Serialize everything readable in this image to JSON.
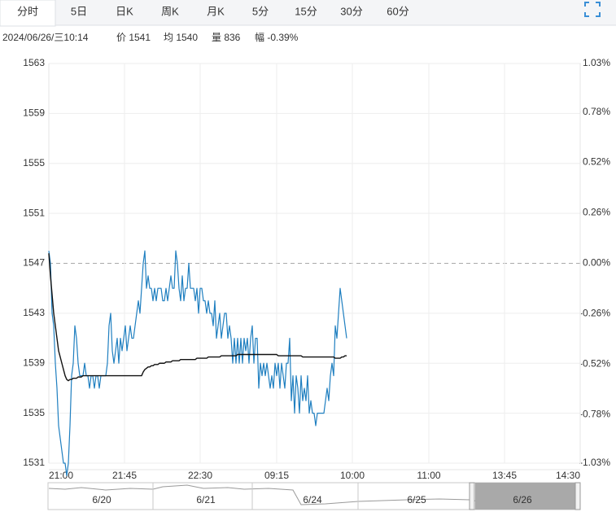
{
  "toolbar": {
    "tabs": [
      "分时",
      "5日",
      "日K",
      "周K",
      "月K",
      "5分",
      "15分",
      "30分",
      "60分"
    ]
  },
  "info": {
    "time": "2024/06/26/三10:14",
    "price": "价 1541",
    "avg": "均 1540",
    "volume": "量 836",
    "change": "幅 -0.39%"
  },
  "navigator": {
    "labels": [
      "6/20",
      "6/21",
      "6/24",
      "6/25",
      "6/26"
    ]
  },
  "chart_data": {
    "type": "line",
    "base_value": 1547,
    "up_color": "#e0302a",
    "down_color": "#2a9d2a",
    "base_color": "#333333",
    "ylim": [
      1531,
      1563
    ],
    "yticks": [
      1563,
      1559,
      1555,
      1551,
      1547,
      1543,
      1539,
      1535,
      1531
    ],
    "y2lim": [
      -1.03,
      1.03
    ],
    "y2ticks": [
      {
        "value": 1.03,
        "label": "1.03%"
      },
      {
        "value": 0.78,
        "label": "0.78%"
      },
      {
        "value": 0.52,
        "label": "0.52%"
      },
      {
        "value": 0.26,
        "label": "0.26%"
      },
      {
        "value": 0,
        "label": "0.00%"
      },
      {
        "value": -0.26,
        "label": "-0.26%"
      },
      {
        "value": -0.52,
        "label": "-0.52%"
      },
      {
        "value": -0.78,
        "label": "-0.78%"
      },
      {
        "value": -1.03,
        "label": "-1.03%"
      }
    ],
    "xlim": [
      0,
      326.5
    ],
    "xticks": [
      {
        "value": 0,
        "label": "21:00"
      },
      {
        "value": 46.5,
        "label": "21:45"
      },
      {
        "value": 93,
        "label": "22:30"
      },
      {
        "value": 140,
        "label": "09:15"
      },
      {
        "value": 186.5,
        "label": "10:00"
      },
      {
        "value": 233.5,
        "label": "11:00"
      },
      {
        "value": 280,
        "label": "13:45"
      },
      {
        "value": 326.5,
        "label": "14:30"
      }
    ],
    "grid": true,
    "series": [
      {
        "color": "#1f7fc0",
        "values": [
          1548,
          1547,
          1543,
          1542,
          1539,
          1537,
          1534,
          1533,
          1532,
          1531,
          1531,
          1530,
          1531,
          1534,
          1538,
          1539,
          1542,
          1541,
          1539,
          1538,
          1538,
          1538,
          1539,
          1538,
          1538,
          1537,
          1538,
          1538,
          1537,
          1538,
          1538,
          1537,
          1538,
          1538,
          1538,
          1538,
          1539,
          1542,
          1543,
          1540,
          1539,
          1540,
          1541,
          1539,
          1541,
          1540,
          1541,
          1542,
          1540,
          1541,
          1542,
          1541,
          1541,
          1542,
          1543,
          1544,
          1543,
          1545,
          1547,
          1548,
          1545,
          1546,
          1545,
          1545,
          1544,
          1545,
          1544,
          1545,
          1545,
          1545,
          1544,
          1544,
          1545,
          1544,
          1545,
          1546,
          1545,
          1545,
          1548,
          1547,
          1545,
          1544,
          1546,
          1544,
          1545,
          1545,
          1547,
          1545,
          1545,
          1545,
          1544,
          1545,
          1543,
          1545,
          1545,
          1544,
          1544,
          1543,
          1544,
          1543,
          1543,
          1542,
          1544,
          1541,
          1542,
          1543,
          1541,
          1542,
          1543,
          1543,
          1541,
          1542,
          1541,
          1539,
          1541,
          1539,
          1541,
          1539,
          1541,
          1539,
          1541,
          1540,
          1541,
          1539,
          1541,
          1542,
          1539,
          1541,
          1541,
          1537,
          1539,
          1538,
          1539,
          1538,
          1539,
          1538,
          1537,
          1538,
          1537,
          1539,
          1538,
          1539,
          1537,
          1539,
          1538,
          1537,
          1539,
          1539,
          1541,
          1536,
          1538,
          1535,
          1538,
          1537,
          1535,
          1538,
          1536,
          1537,
          1536,
          1538,
          1535,
          1536,
          1535,
          1535,
          1534,
          1535,
          1535,
          1535,
          1535,
          1535,
          1536,
          1537,
          1536,
          1538,
          1539,
          1538,
          1542,
          1541,
          1543,
          1545,
          1544,
          1543,
          1542,
          1541
        ]
      },
      {
        "color": "#111111",
        "values": [
          1547.8,
          1546,
          1544.5,
          1543,
          1542,
          1541,
          1540,
          1539.5,
          1539,
          1538.5,
          1538,
          1537.7,
          1537.6,
          1537.7,
          1537.7,
          1537.8,
          1537.8,
          1537.8,
          1537.9,
          1537.9,
          1537.9,
          1538,
          1538,
          1538,
          1538,
          1538,
          1538,
          1538,
          1538,
          1538,
          1538,
          1538,
          1538,
          1538,
          1538,
          1538,
          1538,
          1538,
          1538,
          1538,
          1538,
          1538,
          1538,
          1538,
          1538,
          1538,
          1538,
          1538,
          1538,
          1538,
          1538,
          1538,
          1538,
          1538,
          1538,
          1538,
          1538,
          1538,
          1538.3,
          1538.5,
          1538.6,
          1538.7,
          1538.7,
          1538.8,
          1538.8,
          1538.9,
          1538.9,
          1538.9,
          1539,
          1539,
          1539,
          1539,
          1539.1,
          1539.1,
          1539.1,
          1539.1,
          1539.2,
          1539.2,
          1539.2,
          1539.2,
          1539.2,
          1539.3,
          1539.3,
          1539.3,
          1539.3,
          1539.3,
          1539.3,
          1539.3,
          1539.3,
          1539.3,
          1539.3,
          1539.4,
          1539.4,
          1539.4,
          1539.4,
          1539.4,
          1539.4,
          1539.4,
          1539.5,
          1539.5,
          1539.5,
          1539.5,
          1539.5,
          1539.5,
          1539.5,
          1539.5,
          1539.6,
          1539.6,
          1539.6,
          1539.6,
          1539.6,
          1539.6,
          1539.6,
          1539.6,
          1539.6,
          1539.6,
          1539.7,
          1539.7,
          1539.7,
          1539.7,
          1539.7,
          1539.7,
          1539.7,
          1539.7,
          1539.7,
          1539.7,
          1539.7,
          1539.7,
          1539.7,
          1539.7,
          1539.7,
          1539.7,
          1539.7,
          1539.7,
          1539.7,
          1539.7,
          1539.7,
          1539.7,
          1539.7,
          1539.7,
          1539.7,
          1539.6,
          1539.6,
          1539.6,
          1539.6,
          1539.6,
          1539.6,
          1539.6,
          1539.6,
          1539.6,
          1539.6,
          1539.6,
          1539.6,
          1539.6,
          1539.6,
          1539.6,
          1539.5,
          1539.5,
          1539.5,
          1539.5,
          1539.5,
          1539.5,
          1539.5,
          1539.5,
          1539.5,
          1539.5,
          1539.5,
          1539.5,
          1539.5,
          1539.5,
          1539.5,
          1539.5,
          1539.5,
          1539.5,
          1539.5,
          1539.5,
          1539.4,
          1539.4,
          1539.4,
          1539.4,
          1539.5,
          1539.5,
          1539.6,
          1539.6
        ]
      }
    ]
  }
}
